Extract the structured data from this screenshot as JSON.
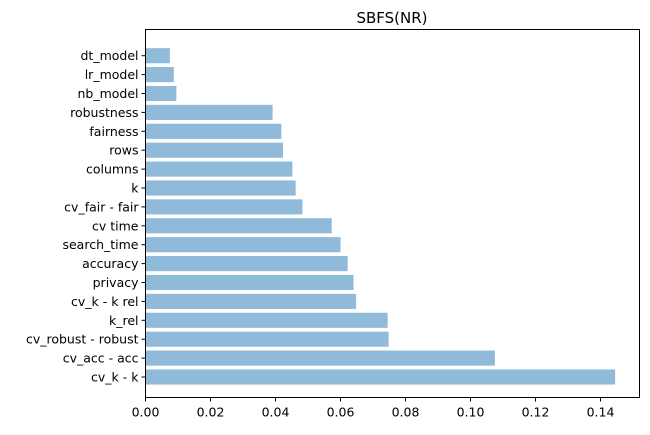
{
  "chart_data": {
    "type": "bar",
    "orientation": "horizontal",
    "title": "SBFS(NR)",
    "xlabel": "",
    "ylabel": "",
    "xlim": [
      0,
      0.152
    ],
    "xticks": [
      "0.00",
      "0.02",
      "0.04",
      "0.06",
      "0.08",
      "0.10",
      "0.12",
      "0.14"
    ],
    "xtick_values": [
      0,
      0.02,
      0.04,
      0.06,
      0.08,
      0.1,
      0.12,
      0.14
    ],
    "grid": false,
    "bar_color": "#8fbad9",
    "categories": [
      "cv_k - k",
      "cv_acc - acc",
      "cv_robust - robust",
      "k_rel",
      "cv_k - k rel",
      "privacy",
      "accuracy",
      "search_time",
      "cv time",
      "cv_fair - fair",
      "k",
      "columns",
      "rows",
      "fairness",
      "robustness",
      "nb_model",
      "lr_model",
      "dt_model"
    ],
    "values": [
      0.1445,
      0.1075,
      0.0748,
      0.0745,
      0.0648,
      0.064,
      0.0622,
      0.06,
      0.0573,
      0.0483,
      0.0462,
      0.0452,
      0.0423,
      0.0418,
      0.0391,
      0.0095,
      0.0087,
      0.0075
    ]
  }
}
